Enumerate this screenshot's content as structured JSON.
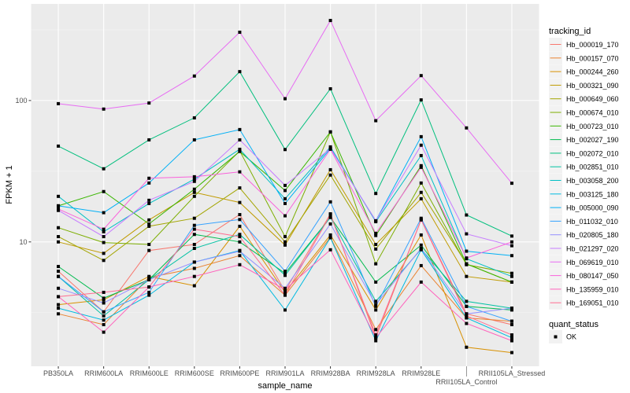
{
  "chart_data": {
    "type": "line",
    "xlabel": "sample_name",
    "ylabel": "FPKM + 1",
    "yscale": "log10",
    "ylim": [
      1.32,
      482
    ],
    "yticks": [
      10,
      100
    ],
    "ytick_labels": [
      "10",
      "100"
    ],
    "grid": true,
    "legend_position": "right",
    "categories": [
      "PB350LA",
      "RRIM600LA",
      "RRIM600LE",
      "RRIM600SE",
      "RRIM600PE",
      "RRIM901LA",
      "RRIM928BA",
      "RRIM928LA",
      "RRIM928LE",
      "RRII105LA_Control",
      "RRII105LA_Stressed"
    ],
    "legend_title": "tracking_id",
    "series": [
      {
        "name": "Hb_000019_170",
        "color": "#F8766D",
        "values": [
          6.2,
          3.2,
          8.7,
          9.6,
          15.6,
          4.5,
          15.8,
          2.1,
          14.4,
          3.1,
          2.6
        ]
      },
      {
        "name": "Hb_000157_070",
        "color": "#EA8331",
        "values": [
          3.1,
          2.6,
          5.6,
          6.5,
          8.0,
          4.2,
          10.8,
          2.4,
          6.8,
          2.9,
          2.75
        ]
      },
      {
        "name": "Hb_000244_260",
        "color": "#D89000",
        "values": [
          3.6,
          3.9,
          5.7,
          4.9,
          12.9,
          4.4,
          11.2,
          3.3,
          11.2,
          1.8,
          1.65
        ]
      },
      {
        "name": "Hb_000321_090",
        "color": "#C09B00",
        "values": [
          10,
          8.3,
          14.3,
          22.4,
          19,
          9.5,
          32.4,
          9.6,
          20.2,
          5.7,
          5.2
        ]
      },
      {
        "name": "Hb_000649_060",
        "color": "#A3A500",
        "values": [
          10.9,
          7.4,
          12.9,
          14.7,
          24.1,
          10,
          29.7,
          8.9,
          22.4,
          7.0,
          5.2
        ]
      },
      {
        "name": "Hb_000674_010",
        "color": "#7CAE00",
        "values": [
          12.6,
          9.9,
          9.6,
          21,
          44.1,
          10.9,
          60,
          7.0,
          26.1,
          6.9,
          6.0
        ]
      },
      {
        "name": "Hb_000723_010",
        "color": "#39B600",
        "values": [
          18,
          22.7,
          13.4,
          23.6,
          43.6,
          23.1,
          60,
          11.1,
          34.6,
          7.0,
          5.2
        ]
      },
      {
        "name": "Hb_002027_190",
        "color": "#00BB4E",
        "values": [
          6.7,
          4.0,
          5.4,
          11.3,
          10,
          6.0,
          14.9,
          5.2,
          9.5,
          3.5,
          3.3
        ]
      },
      {
        "name": "Hb_002072_010",
        "color": "#00BF7D",
        "values": [
          47.6,
          32.9,
          52.7,
          75.4,
          160,
          45,
          121,
          22,
          101,
          15.5,
          11
        ]
      },
      {
        "name": "Hb_002851_010",
        "color": "#00C1A3",
        "values": [
          5.7,
          3.0,
          5.4,
          9.0,
          11.3,
          5.8,
          14.9,
          3.8,
          8.9,
          3.8,
          3.4
        ]
      },
      {
        "name": "Hb_003058_200",
        "color": "#00BFC4",
        "values": [
          21,
          11.8,
          18.7,
          27.8,
          45.2,
          20.2,
          47,
          13.9,
          40.8,
          7.6,
          5.7
        ]
      },
      {
        "name": "Hb_003125_180",
        "color": "#00BAE0",
        "values": [
          3.4,
          2.8,
          4.2,
          7.2,
          8.7,
          3.3,
          10.7,
          2.0,
          8.8,
          2.9,
          2.1
        ]
      },
      {
        "name": "Hb_005000_090",
        "color": "#00B0F6",
        "values": [
          18,
          16.1,
          26.1,
          52.7,
          62.3,
          18.7,
          45.8,
          14.1,
          55.5,
          8.6,
          8.0
        ]
      },
      {
        "name": "Hb_011032_010",
        "color": "#35A2FF",
        "values": [
          5.7,
          3.2,
          4.4,
          13.1,
          14.4,
          6.2,
          19.2,
          3.5,
          14.7,
          3.5,
          2.75
        ]
      },
      {
        "name": "Hb_020805_180",
        "color": "#9590FF",
        "values": [
          4.7,
          3.7,
          5.4,
          7.2,
          8.6,
          4.7,
          13.4,
          3.6,
          9.0,
          3.1,
          3.4
        ]
      },
      {
        "name": "Hb_021297_020",
        "color": "#C77CFF",
        "values": [
          16.7,
          10.9,
          19.7,
          26.8,
          52.7,
          25.1,
          45.8,
          14.1,
          48.3,
          11.4,
          9.4
        ]
      },
      {
        "name": "Hb_069619_010",
        "color": "#E76BF3",
        "values": [
          95,
          87,
          96,
          149,
          304,
          103,
          368,
          72,
          150,
          64,
          26
        ]
      },
      {
        "name": "Hb_080147_050",
        "color": "#FA62DB",
        "values": [
          17.1,
          12.3,
          28.2,
          28.9,
          31.3,
          15.3,
          45.2,
          11.5,
          33.7,
          7.7,
          10
        ]
      },
      {
        "name": "Hb_135959_010",
        "color": "#FF62BC",
        "values": [
          4.1,
          2.3,
          4.8,
          5.7,
          6.9,
          4.6,
          8.8,
          2.1,
          5.2,
          2.65,
          2.0
        ]
      },
      {
        "name": "Hb_169051_010",
        "color": "#FF6C91",
        "values": [
          4.1,
          4.4,
          4.8,
          12.3,
          10.9,
          4.2,
          15.6,
          2.2,
          14.3,
          3.0,
          2.2
        ]
      }
    ],
    "shape_legend": {
      "title": "quant_status",
      "items": [
        "OK"
      ]
    }
  }
}
